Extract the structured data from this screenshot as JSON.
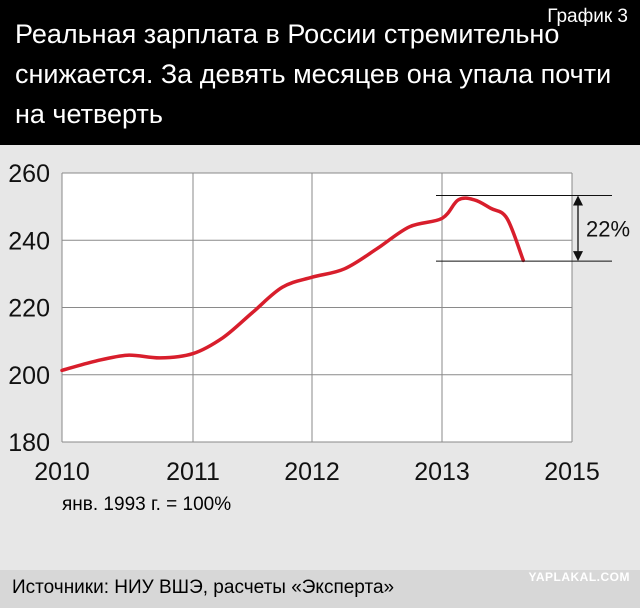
{
  "header": {
    "title": "Реальная зарплата в России стремительно снижается. За девять месяцев она упала почти на четверть",
    "badge": "График 3"
  },
  "chart_data": {
    "type": "line",
    "title": "Реальная зарплата в России стремительно снижается. За девять месяцев она упала почти на четверть",
    "xlabel": "",
    "ylabel": "",
    "x_ticks": [
      2010,
      2011,
      2012,
      2013,
      2015
    ],
    "y_ticks": [
      180,
      200,
      220,
      240,
      260
    ],
    "xlim": [
      2010,
      2015
    ],
    "ylim": [
      180,
      260
    ],
    "grid": true,
    "color": "#d81e2c",
    "series": [
      {
        "values": [
          [
            2010.0,
            201.3
          ],
          [
            2010.25,
            204.0
          ],
          [
            2010.5,
            205.8
          ],
          [
            2010.75,
            205.0
          ],
          [
            2011.0,
            206.3
          ],
          [
            2011.25,
            211.0
          ],
          [
            2011.5,
            218.5
          ],
          [
            2011.75,
            226.0
          ],
          [
            2012.0,
            229.0
          ],
          [
            2012.25,
            231.5
          ],
          [
            2012.5,
            237.5
          ],
          [
            2012.75,
            244.0
          ],
          [
            2013.0,
            246.5
          ],
          [
            2013.25,
            252.0
          ],
          [
            2013.5,
            252.0
          ],
          [
            2013.75,
            249.5
          ],
          [
            2014.0,
            246.5
          ],
          [
            2014.25,
            234.0
          ]
        ]
      }
    ],
    "annotation": {
      "label": "22%",
      "from_value": 253.3,
      "to_value": 233.8
    }
  },
  "footnote": "янв. 1993 г. = 100%",
  "source": "Источники: НИУ ВШЭ, расчеты «Эксперта»",
  "watermark": "YAPLAKAL.COM"
}
